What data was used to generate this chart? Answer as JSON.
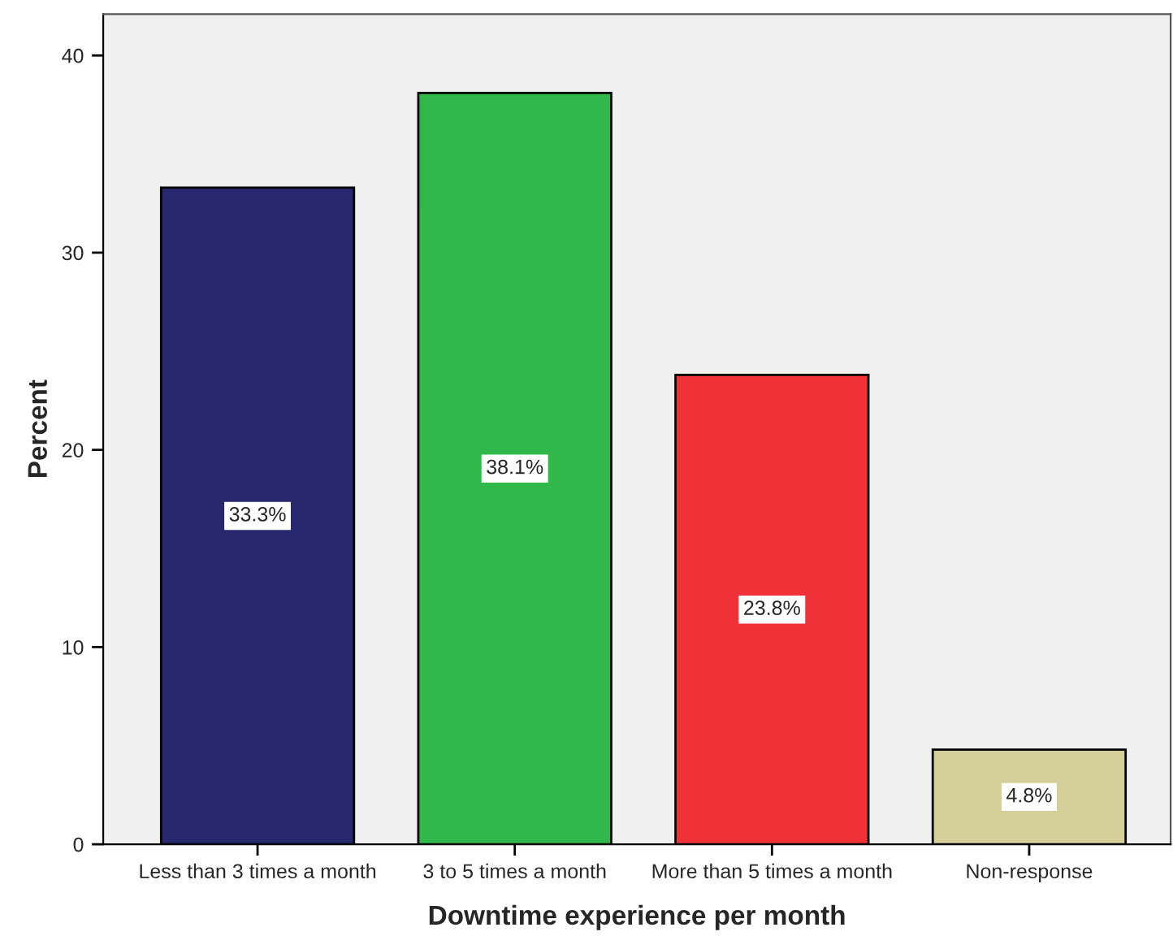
{
  "chart_data": {
    "type": "bar",
    "xlabel": "Downtime experience per month",
    "ylabel": "Percent",
    "categories": [
      "Less than 3 times a month",
      "3 to 5 times a month",
      "More than 5 times a month",
      "Non-response"
    ],
    "values": [
      33.3,
      38.1,
      23.8,
      4.8
    ],
    "colors": [
      "#28286f",
      "#30b94a",
      "#f03238",
      "#d4cf98"
    ],
    "value_labels": [
      "33.3%",
      "38.1%",
      "23.8%",
      "4.8%"
    ],
    "ylim": [
      0,
      42.1
    ],
    "yticks": [
      0,
      10,
      20,
      30,
      40
    ],
    "grid": false,
    "legend": false
  }
}
